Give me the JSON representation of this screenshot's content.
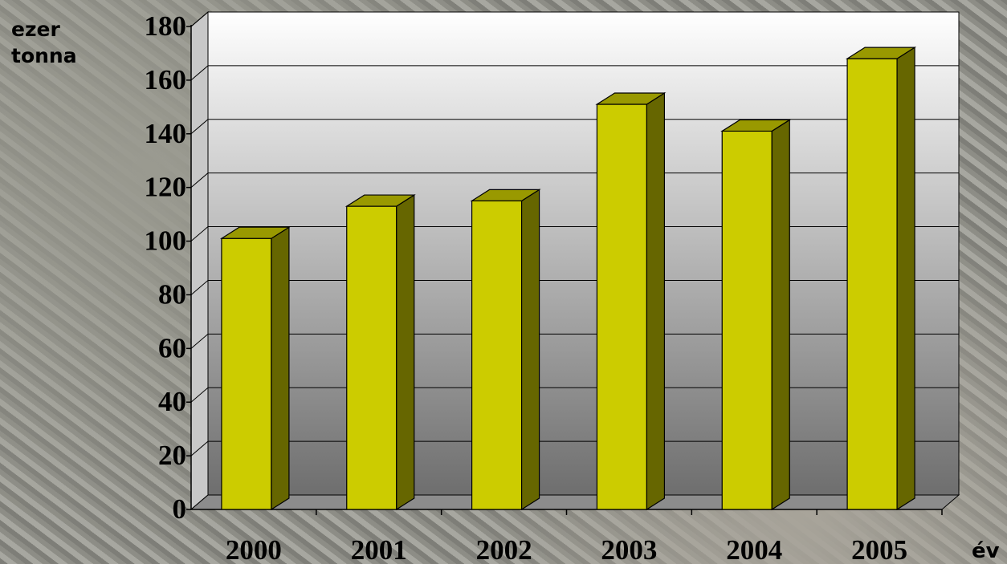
{
  "chart_data": {
    "type": "bar",
    "categories": [
      "2000",
      "2001",
      "2002",
      "2003",
      "2004",
      "2005"
    ],
    "values": [
      101,
      113,
      115,
      151,
      141,
      168
    ],
    "ylabel_lines": [
      "ezer",
      "tonna"
    ],
    "xlabel": "év",
    "ylim": [
      0,
      180
    ],
    "yticks": [
      "0",
      "20",
      "40",
      "60",
      "80",
      "100",
      "120",
      "140",
      "160",
      "180"
    ],
    "grid": true,
    "style": "3d-columns",
    "colors": {
      "bar_front": "#cccc00",
      "bar_side": "#666600",
      "bar_top": "#999900",
      "wall_top": "#ffffff",
      "wall_bottom": "#6e6e6e"
    }
  }
}
